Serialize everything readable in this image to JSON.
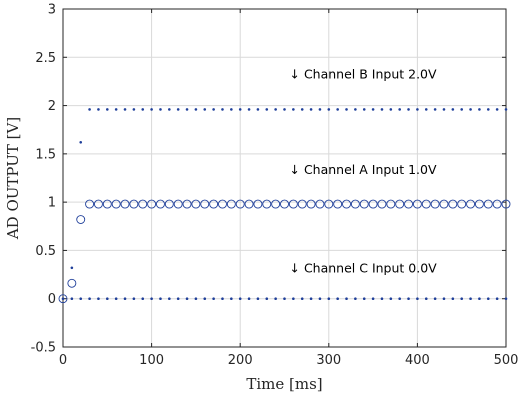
{
  "chart_data": {
    "type": "scatter",
    "xlabel": "Time [ms]",
    "ylabel": "AD OUTPUT [V]",
    "xlim": [
      0,
      500
    ],
    "ylim": [
      -0.5,
      3
    ],
    "xticks": [
      0,
      100,
      200,
      300,
      400,
      500
    ],
    "yticks": [
      -0.5,
      0,
      0.5,
      1,
      1.5,
      2,
      2.5,
      3
    ],
    "ytick_labels": [
      "-0.5",
      "0",
      "0.5",
      "1",
      "1.5",
      "2",
      "2.5",
      "3"
    ],
    "grid": true,
    "colors": {
      "marker": "#1f3f9a",
      "grid": "#d9d9d9",
      "axis": "#262626"
    },
    "annotations": [
      {
        "text": "↓ Channel B Input 2.0V",
        "x": 250,
        "y": 2.28
      },
      {
        "text": "↓ Channel A Input 1.0V",
        "x": 250,
        "y": 1.29
      },
      {
        "text": "↓ Channel C Input 0.0V",
        "x": 250,
        "y": 0.27
      }
    ],
    "series": [
      {
        "marker": "open-circle",
        "x": [
          0,
          10,
          20,
          30,
          40,
          50,
          60,
          70,
          80,
          90,
          100,
          110,
          120,
          130,
          140,
          150,
          160,
          170,
          180,
          190,
          200,
          210,
          220,
          230,
          240,
          250,
          260,
          270,
          280,
          290,
          300,
          310,
          320,
          330,
          340,
          350,
          360,
          370,
          380,
          390,
          400,
          410,
          420,
          430,
          440,
          450,
          460,
          470,
          480,
          490,
          500
        ],
        "y": [
          0,
          0.16,
          0.82,
          0.98,
          0.98,
          0.98,
          0.98,
          0.98,
          0.98,
          0.98,
          0.98,
          0.98,
          0.98,
          0.98,
          0.98,
          0.98,
          0.98,
          0.98,
          0.98,
          0.98,
          0.98,
          0.98,
          0.98,
          0.98,
          0.98,
          0.98,
          0.98,
          0.98,
          0.98,
          0.98,
          0.98,
          0.98,
          0.98,
          0.98,
          0.98,
          0.98,
          0.98,
          0.98,
          0.98,
          0.98,
          0.98,
          0.98,
          0.98,
          0.98,
          0.98,
          0.98,
          0.98,
          0.98,
          0.98,
          0.98,
          0.98
        ]
      },
      {
        "marker": "dot",
        "x": [
          10,
          20,
          30,
          40,
          50,
          60,
          70,
          80,
          90,
          100,
          110,
          120,
          130,
          140,
          150,
          160,
          170,
          180,
          190,
          200,
          210,
          220,
          230,
          240,
          250,
          260,
          270,
          280,
          290,
          300,
          310,
          320,
          330,
          340,
          350,
          360,
          370,
          380,
          390,
          400,
          410,
          420,
          430,
          440,
          450,
          460,
          470,
          480,
          490,
          500
        ],
        "y": [
          0.32,
          1.62,
          1.96,
          1.96,
          1.96,
          1.96,
          1.96,
          1.96,
          1.96,
          1.96,
          1.96,
          1.96,
          1.96,
          1.96,
          1.96,
          1.96,
          1.96,
          1.96,
          1.96,
          1.96,
          1.96,
          1.96,
          1.96,
          1.96,
          1.96,
          1.96,
          1.96,
          1.96,
          1.96,
          1.96,
          1.96,
          1.96,
          1.96,
          1.96,
          1.96,
          1.96,
          1.96,
          1.96,
          1.96,
          1.96,
          1.96,
          1.96,
          1.96,
          1.96,
          1.96,
          1.96,
          1.96,
          1.96,
          1.96,
          1.96
        ]
      },
      {
        "marker": "dot",
        "x": [
          0,
          10,
          20,
          30,
          40,
          50,
          60,
          70,
          80,
          90,
          100,
          110,
          120,
          130,
          140,
          150,
          160,
          170,
          180,
          190,
          200,
          210,
          220,
          230,
          240,
          250,
          260,
          270,
          280,
          290,
          300,
          310,
          320,
          330,
          340,
          350,
          360,
          370,
          380,
          390,
          400,
          410,
          420,
          430,
          440,
          450,
          460,
          470,
          480,
          490,
          500
        ],
        "y": [
          0,
          0,
          0,
          0,
          0,
          0,
          0,
          0,
          0,
          0,
          0,
          0,
          0,
          0,
          0,
          0,
          0,
          0,
          0,
          0,
          0,
          0,
          0,
          0,
          0,
          0,
          0,
          0,
          0,
          0,
          0,
          0,
          0,
          0,
          0,
          0,
          0,
          0,
          0,
          0,
          0,
          0,
          0,
          0,
          0,
          0,
          0,
          0,
          0,
          0,
          0
        ]
      }
    ]
  }
}
